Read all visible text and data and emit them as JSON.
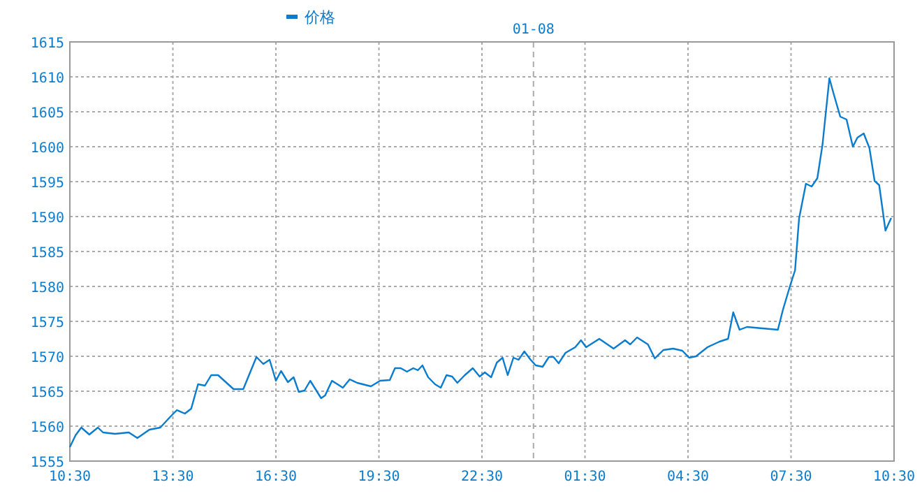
{
  "chart_data": {
    "type": "line",
    "legend": "top",
    "grid": true,
    "marker": "none",
    "line_style": "solid",
    "x": [
      "--01-07T10:30",
      "--01-07T10:40",
      "--01-07T10:50",
      "--01-07T11:04",
      "--01-07T11:19",
      "--01-07T11:28",
      "--01-07T11:49",
      "--01-07T12:13",
      "--01-07T12:28",
      "--01-07T12:49",
      "--01-07T13:08",
      "--01-07T13:25",
      "--01-07T13:37",
      "--01-07T13:51",
      "--01-07T14:02",
      "--01-07T14:14",
      "--01-07T14:26",
      "--01-07T14:37",
      "--01-07T14:49",
      "--01-07T15:16",
      "--01-07T15:33",
      "--01-07T15:56",
      "--01-07T16:08",
      "--01-07T16:19",
      "--01-07T16:30",
      "--01-07T16:39",
      "--01-07T16:51",
      "--01-07T17:01",
      "--01-07T17:10",
      "--01-07T17:20",
      "--01-07T17:30",
      "--01-07T17:49",
      "--01-07T17:56",
      "--01-07T18:08",
      "--01-07T18:27",
      "--01-07T18:39",
      "--01-07T18:52",
      "--01-07T19:16",
      "--01-07T19:32",
      "--01-07T19:49",
      "--01-07T19:58",
      "--01-07T20:08",
      "--01-07T20:19",
      "--01-07T20:30",
      "--01-07T20:38",
      "--01-07T20:46",
      "--01-07T20:56",
      "--01-07T21:08",
      "--01-07T21:18",
      "--01-07T21:28",
      "--01-07T21:38",
      "--01-07T21:47",
      "--01-07T22:00",
      "--01-07T22:14",
      "--01-07T22:26",
      "--01-07T22:35",
      "--01-07T22:46",
      "--01-07T22:56",
      "--01-07T23:06",
      "--01-07T23:15",
      "--01-07T23:25",
      "--01-07T23:34",
      "--01-07T23:44",
      "--01-07T23:55",
      "--01-08T00:04",
      "--01-08T00:16",
      "--01-08T00:27",
      "--01-08T00:35",
      "--01-08T00:44",
      "--01-08T00:56",
      "--01-08T01:13",
      "--01-08T01:23",
      "--01-08T01:32",
      "--01-08T01:55",
      "--01-08T02:20",
      "--01-08T02:40",
      "--01-08T02:49",
      "--01-08T03:01",
      "--01-08T03:20",
      "--01-08T03:32",
      "--01-08T03:47",
      "--01-08T04:04",
      "--01-08T04:20",
      "--01-08T04:32",
      "--01-08T04:44",
      "--01-08T05:04",
      "--01-08T05:25",
      "--01-08T05:40",
      "--01-08T05:49",
      "--01-08T06:00",
      "--01-08T06:13",
      "--01-08T07:07",
      "--01-08T07:16",
      "--01-08T07:28",
      "--01-08T07:37",
      "--01-08T07:44",
      "--01-08T07:56",
      "--01-08T08:06",
      "--01-08T08:16",
      "--01-08T08:25",
      "--01-08T08:37",
      "--01-08T08:44",
      "--01-08T08:56",
      "--01-08T09:07",
      "--01-08T09:18",
      "--01-08T09:26",
      "--01-08T09:37",
      "--01-08T09:47",
      "--01-08T09:56",
      "--01-08T10:04",
      "--01-08T10:15",
      "--01-08T10:25"
    ],
    "series": [
      {
        "name": "价格",
        "color": "#0a7ccf",
        "values": [
          1557.0,
          1558.7,
          1559.8,
          1558.8,
          1559.8,
          1559.1,
          1558.9,
          1559.1,
          1558.3,
          1559.5,
          1559.8,
          1561.3,
          1562.3,
          1561.8,
          1562.5,
          1566.0,
          1565.8,
          1567.3,
          1567.3,
          1565.3,
          1565.3,
          1569.9,
          1568.9,
          1569.5,
          1566.5,
          1567.9,
          1566.3,
          1567.0,
          1564.9,
          1565.1,
          1566.5,
          1564.0,
          1564.4,
          1566.5,
          1565.5,
          1566.7,
          1566.2,
          1565.7,
          1566.5,
          1566.6,
          1568.3,
          1568.3,
          1567.8,
          1568.3,
          1568.0,
          1568.7,
          1567.0,
          1566.0,
          1565.5,
          1567.3,
          1567.1,
          1566.2,
          1567.3,
          1568.3,
          1567.1,
          1567.7,
          1567.0,
          1569.1,
          1569.8,
          1567.3,
          1569.8,
          1569.5,
          1570.7,
          1569.5,
          1568.7,
          1568.5,
          1569.9,
          1569.9,
          1569.0,
          1570.5,
          1571.3,
          1572.3,
          1571.3,
          1572.5,
          1571.1,
          1572.3,
          1571.7,
          1572.7,
          1571.7,
          1569.7,
          1570.9,
          1571.1,
          1570.8,
          1569.8,
          1570.0,
          1571.3,
          1572.1,
          1572.5,
          1576.3,
          1573.8,
          1574.2,
          1573.8,
          1576.7,
          1580.0,
          1582.3,
          1589.7,
          1594.7,
          1594.3,
          1595.5,
          1600.3,
          1609.8,
          1607.7,
          1604.3,
          1603.9,
          1600.0,
          1601.3,
          1601.9,
          1599.8,
          1595.1,
          1594.5,
          1588.0,
          1589.8
        ]
      }
    ],
    "xlim": [
      "--01-07T10:30",
      "--01-08T10:30"
    ],
    "xticks": [
      {
        "value": "--01-07T10:30",
        "label": "10:30"
      },
      {
        "value": "--01-07T13:30",
        "label": "13:30"
      },
      {
        "value": "--01-07T16:30",
        "label": "16:30"
      },
      {
        "value": "--01-07T19:30",
        "label": "19:30"
      },
      {
        "value": "--01-07T22:30",
        "label": "22:30"
      },
      {
        "value": "--01-08T01:30",
        "label": "01:30"
      },
      {
        "value": "--01-08T04:30",
        "label": "04:30"
      },
      {
        "value": "--01-08T07:30",
        "label": "07:30"
      },
      {
        "value": "--01-08T10:30",
        "label": "10:30"
      }
    ],
    "ylim": [
      1555,
      1615
    ],
    "yticks": [
      1555,
      1560,
      1565,
      1570,
      1575,
      1580,
      1585,
      1590,
      1595,
      1600,
      1605,
      1610,
      1615
    ],
    "ref_lines": [
      {
        "axis": "x",
        "value": "--01-08",
        "label": "01-08",
        "line_style": "dashed"
      }
    ]
  }
}
